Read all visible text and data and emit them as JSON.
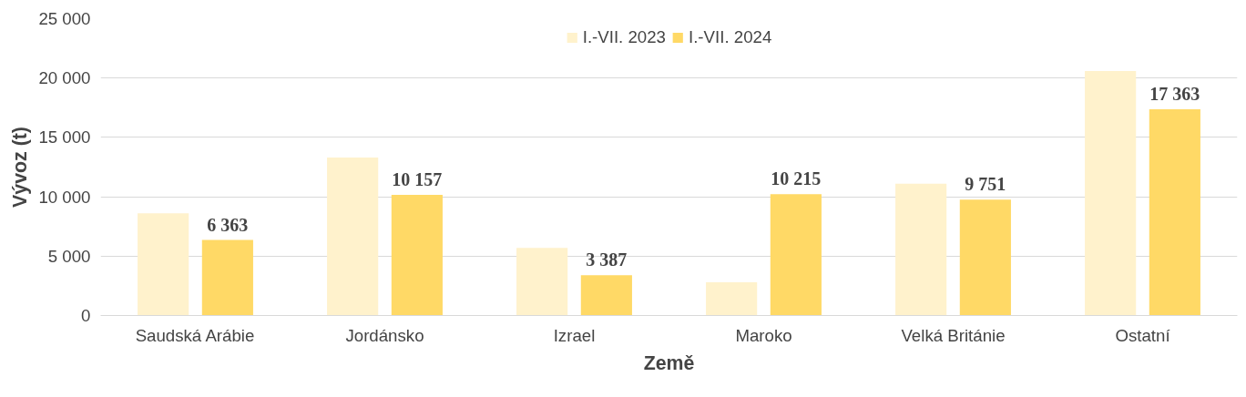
{
  "chart_data": {
    "type": "bar",
    "xlabel": "Země",
    "ylabel": "Vývoz (t)",
    "categories": [
      "Saudská Arábie",
      "Jordánsko",
      "Izrael",
      "Maroko",
      "Velká Británie",
      "Ostatní"
    ],
    "series": [
      {
        "name": "I.-VII. 2023",
        "color": "#fff2cc",
        "values": [
          8600,
          13300,
          5700,
          2800,
          11100,
          20600
        ]
      },
      {
        "name": "I.-VII. 2024",
        "color": "#ffd966",
        "values": [
          6363,
          10157,
          3387,
          10215,
          9751,
          17363
        ],
        "value_labels": [
          "6 363",
          "10 157",
          "3 387",
          "10 215",
          "9 751",
          "17 363"
        ]
      }
    ],
    "ylim": [
      0,
      25000
    ],
    "yticks": [
      {
        "value": 0,
        "label": "0"
      },
      {
        "value": 5000,
        "label": "5 000"
      },
      {
        "value": 10000,
        "label": "10 000"
      },
      {
        "value": 15000,
        "label": "15 000"
      },
      {
        "value": 20000,
        "label": "20 000"
      },
      {
        "value": 25000,
        "label": "25 000"
      }
    ],
    "grid": "y",
    "legend": "top"
  }
}
